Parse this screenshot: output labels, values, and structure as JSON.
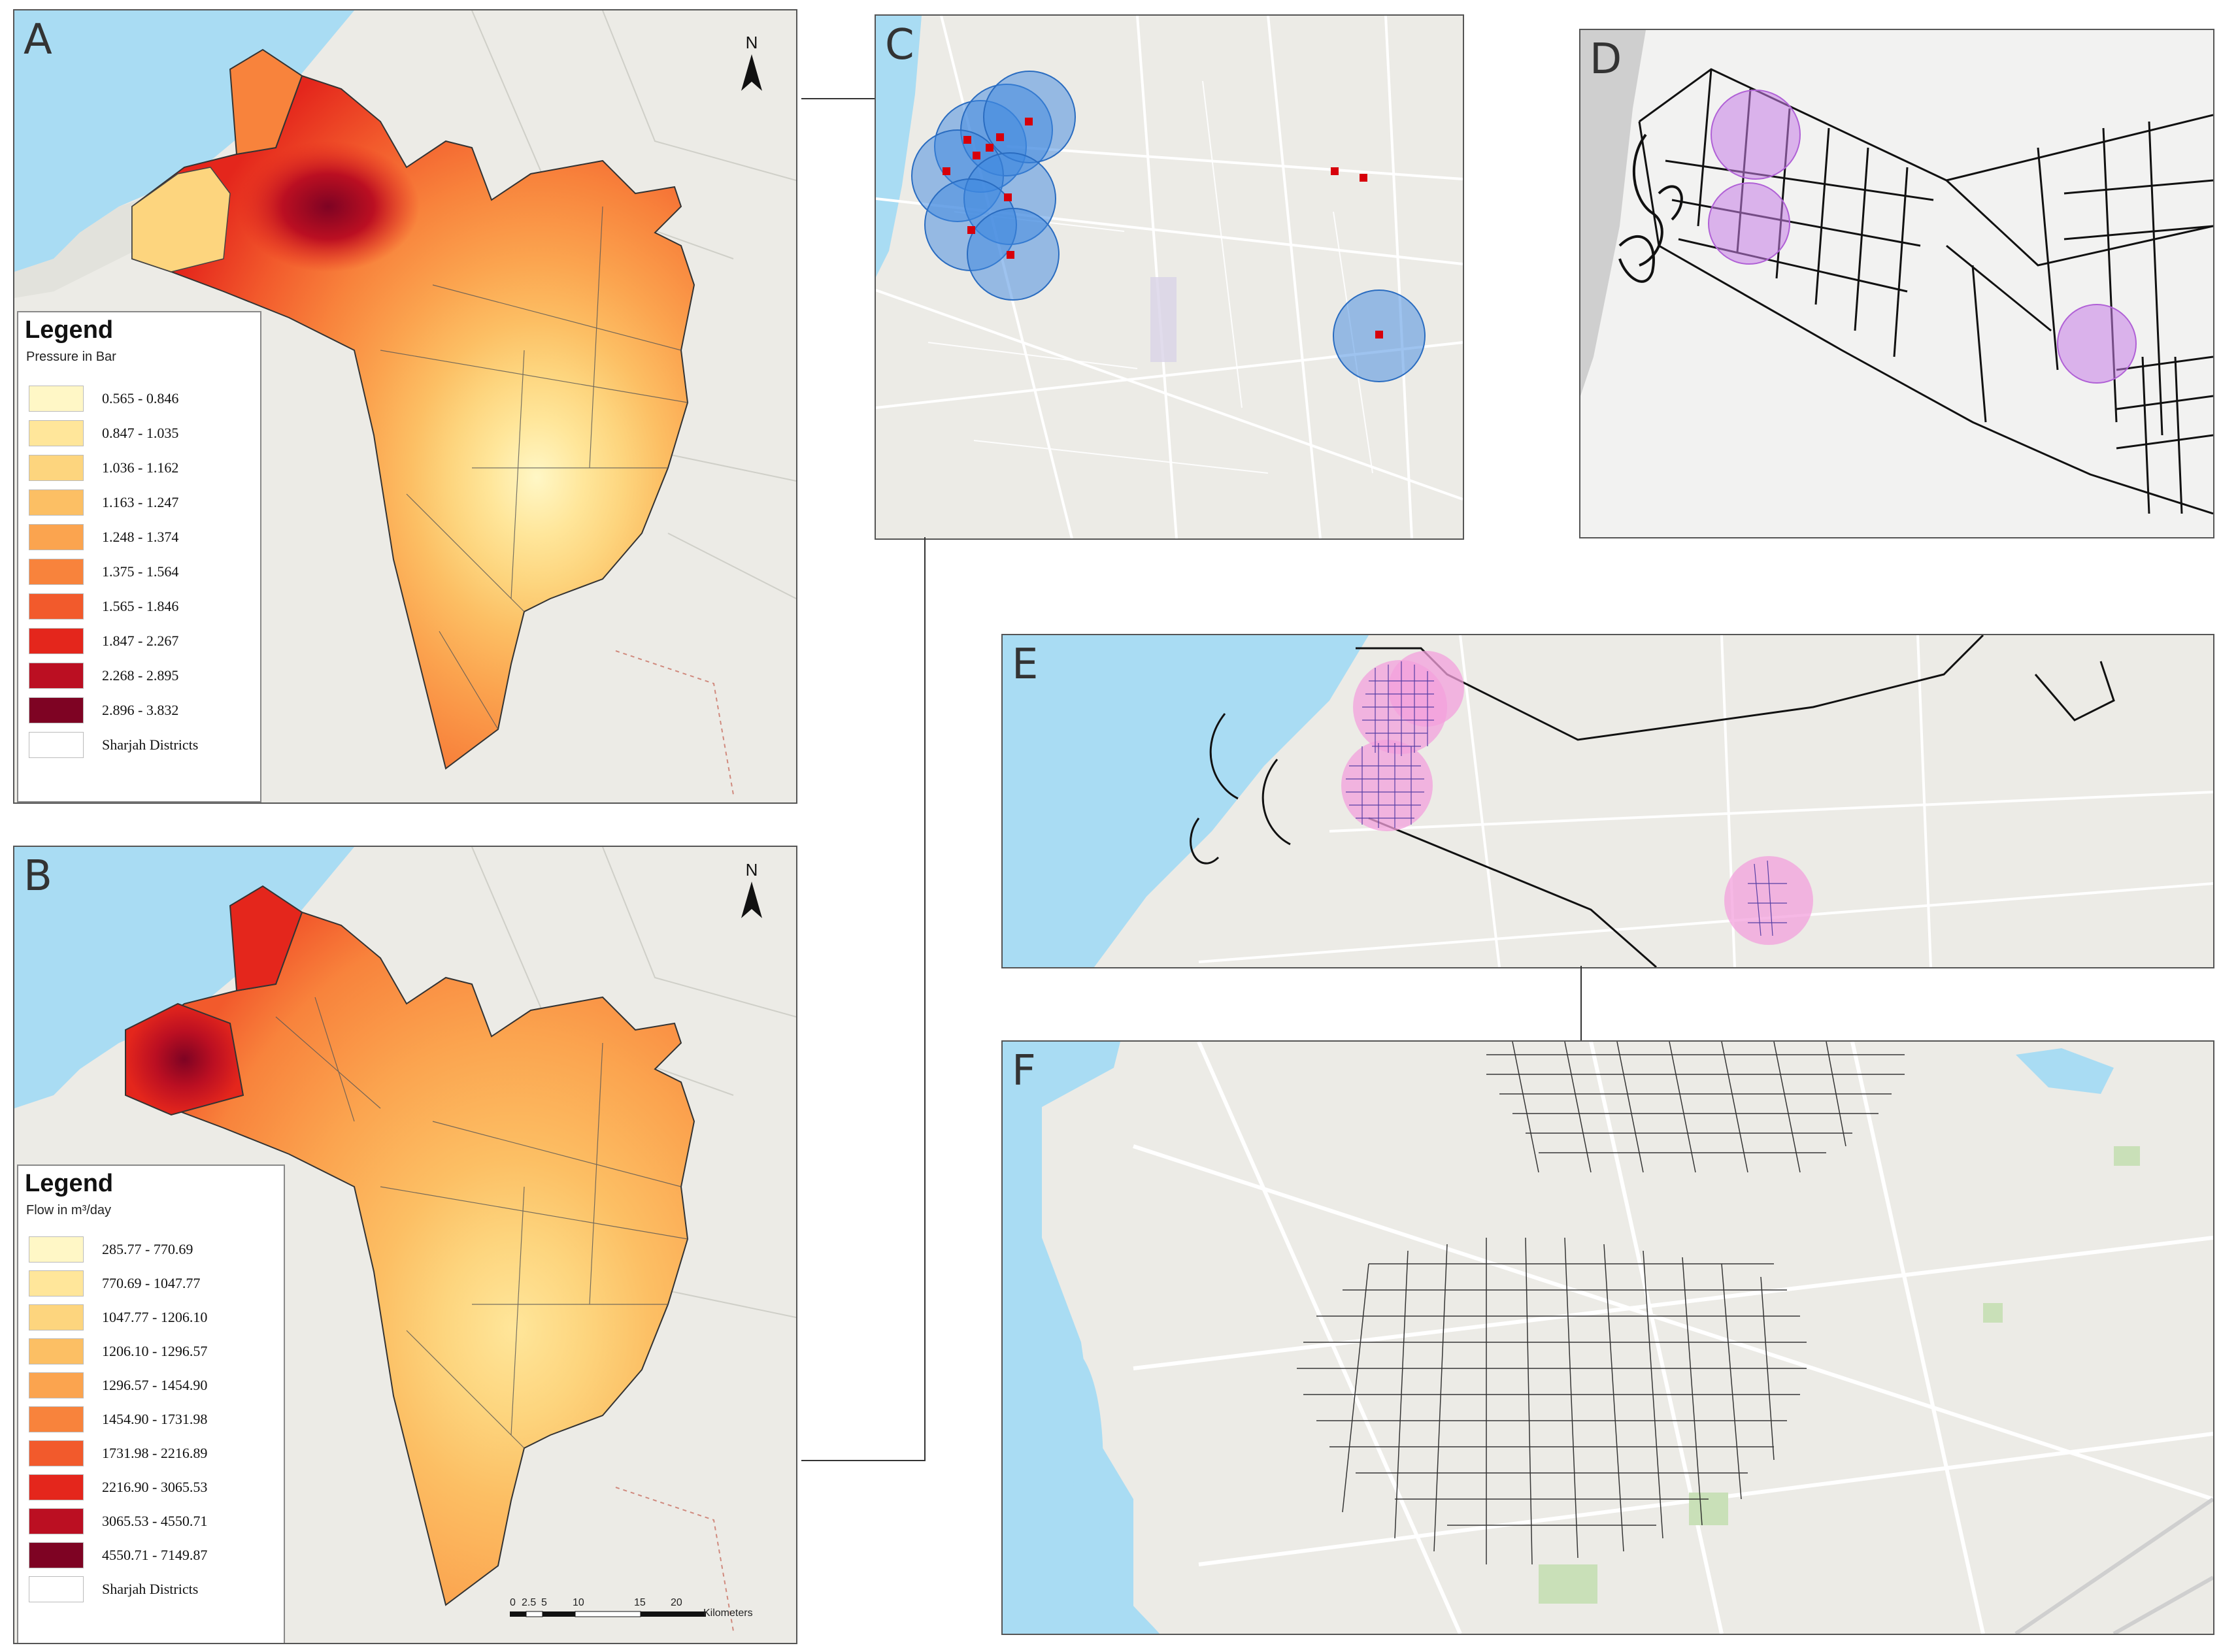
{
  "panels": {
    "A": {
      "label": "A"
    },
    "B": {
      "label": "B"
    },
    "C": {
      "label": "C"
    },
    "D": {
      "label": "D"
    },
    "E": {
      "label": "E"
    },
    "F": {
      "label": "F"
    }
  },
  "legend_pressure": {
    "title": "Legend",
    "subtitle": "Pressure in Bar",
    "classes": [
      {
        "range": "0.565 - 0.846",
        "color": "#fff7c6"
      },
      {
        "range": "0.847 - 1.035",
        "color": "#ffe69a"
      },
      {
        "range": "1.036 - 1.162",
        "color": "#fdd57e"
      },
      {
        "range": "1.163 - 1.247",
        "color": "#fcbf64"
      },
      {
        "range": "1.248 - 1.374",
        "color": "#fba44f"
      },
      {
        "range": "1.375 - 1.564",
        "color": "#f8833c"
      },
      {
        "range": "1.565 - 1.846",
        "color": "#f25a2c"
      },
      {
        "range": "1.847 - 2.267",
        "color": "#e4261c"
      },
      {
        "range": "2.268 - 2.895",
        "color": "#bb0f22"
      },
      {
        "range": "2.896 - 3.832",
        "color": "#7e0323"
      },
      {
        "range": "Sharjah Districts",
        "color": "#ffffff"
      }
    ]
  },
  "legend_flow": {
    "title": "Legend",
    "subtitle": "Flow in m³/day",
    "classes": [
      {
        "range": "285.77 - 770.69",
        "color": "#fff7c6"
      },
      {
        "range": "770.69 - 1047.77",
        "color": "#ffe69a"
      },
      {
        "range": "1047.77 - 1206.10",
        "color": "#fdd57e"
      },
      {
        "range": "1206.10 - 1296.57",
        "color": "#fcbf64"
      },
      {
        "range": "1296.57 - 1454.90",
        "color": "#fba44f"
      },
      {
        "range": "1454.90 - 1731.98",
        "color": "#f8833c"
      },
      {
        "range": "1731.98 - 2216.89",
        "color": "#f25a2c"
      },
      {
        "range": "2216.90 - 3065.53",
        "color": "#e4261c"
      },
      {
        "range": "3065.53 - 4550.71",
        "color": "#bb0f22"
      },
      {
        "range": "4550.71 - 7149.87",
        "color": "#7e0323"
      },
      {
        "range": "Sharjah Districts",
        "color": "#ffffff"
      }
    ]
  },
  "north_arrow": {
    "label": "N"
  },
  "scale_bar": {
    "ticks": [
      "0",
      "2.5",
      "5",
      "10",
      "15",
      "20"
    ],
    "unit": "Kilometers"
  },
  "colors": {
    "sea": "#a9dcf3",
    "land": "#ecebe6",
    "buffer_blue": "#3d87e0",
    "buffer_purple": "#c77de6",
    "buffer_pink": "#f3a0dc",
    "pin_red": "#d7000b"
  }
}
